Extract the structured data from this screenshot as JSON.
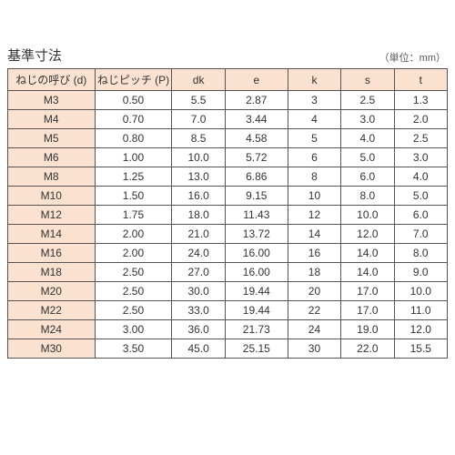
{
  "title": "基準寸法",
  "unit_label": "（単位：mm）",
  "table": {
    "type": "table",
    "header_bg": "#fbe2d0",
    "row_header_bg": "#fbe2d0",
    "border_color": "#555555",
    "cell_bg": "#ffffff",
    "font_size": 12,
    "columns": [
      "ねじの呼び (d)",
      "ねじピッチ (P)",
      "dk",
      "e",
      "k",
      "s",
      "t"
    ],
    "col_widths_pct": [
      18,
      16,
      11,
      13,
      11,
      11,
      11
    ],
    "rows": [
      [
        "M3",
        "0.50",
        "5.5",
        "2.87",
        "3",
        "2.5",
        "1.3"
      ],
      [
        "M4",
        "0.70",
        "7.0",
        "3.44",
        "4",
        "3.0",
        "2.0"
      ],
      [
        "M5",
        "0.80",
        "8.5",
        "4.58",
        "5",
        "4.0",
        "2.5"
      ],
      [
        "M6",
        "1.00",
        "10.0",
        "5.72",
        "6",
        "5.0",
        "3.0"
      ],
      [
        "M8",
        "1.25",
        "13.0",
        "6.86",
        "8",
        "6.0",
        "4.0"
      ],
      [
        "M10",
        "1.50",
        "16.0",
        "9.15",
        "10",
        "8.0",
        "5.0"
      ],
      [
        "M12",
        "1.75",
        "18.0",
        "11.43",
        "12",
        "10.0",
        "6.0"
      ],
      [
        "M14",
        "2.00",
        "21.0",
        "13.72",
        "14",
        "12.0",
        "7.0"
      ],
      [
        "M16",
        "2.00",
        "24.0",
        "16.00",
        "16",
        "14.0",
        "8.0"
      ],
      [
        "M18",
        "2.50",
        "27.0",
        "16.00",
        "18",
        "14.0",
        "9.0"
      ],
      [
        "M20",
        "2.50",
        "30.0",
        "19.44",
        "20",
        "17.0",
        "10.0"
      ],
      [
        "M22",
        "2.50",
        "33.0",
        "19.44",
        "22",
        "17.0",
        "11.0"
      ],
      [
        "M24",
        "3.00",
        "36.0",
        "21.73",
        "24",
        "19.0",
        "12.0"
      ],
      [
        "M30",
        "3.50",
        "45.0",
        "25.15",
        "30",
        "22.0",
        "15.5"
      ]
    ]
  }
}
